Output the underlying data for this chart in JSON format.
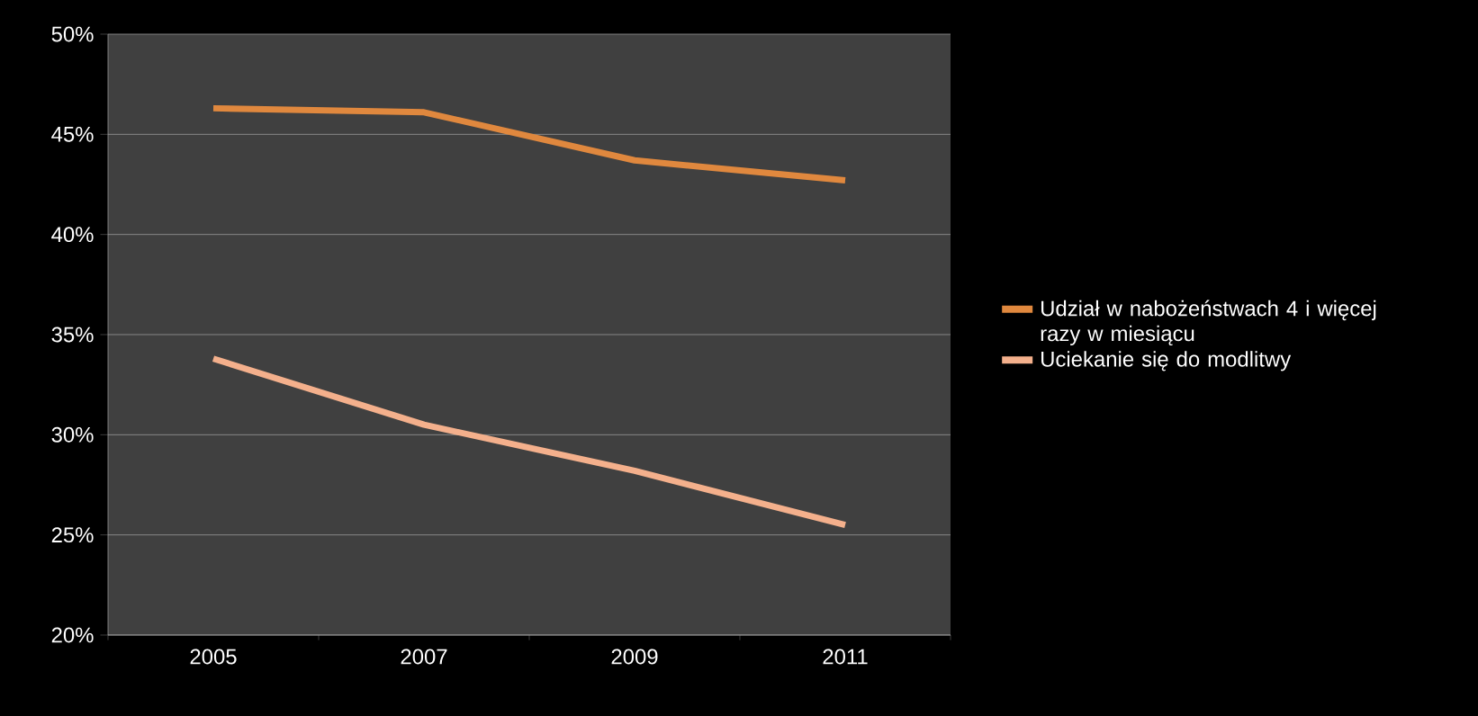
{
  "chart_data": {
    "type": "line",
    "categories": [
      "2005",
      "2007",
      "2009",
      "2011"
    ],
    "series": [
      {
        "name": "Udział w nabożeństwach 4 i więcej razy w miesiącu",
        "color": "#e0883e",
        "values": [
          46.3,
          46.1,
          43.7,
          42.7
        ]
      },
      {
        "name": "Uciekanie się do modlitwy",
        "color": "#f4b08c",
        "values": [
          33.8,
          30.5,
          28.2,
          25.5
        ]
      }
    ],
    "ylim": [
      20,
      50
    ],
    "yticks": [
      {
        "value": 20,
        "label": "20%"
      },
      {
        "value": 25,
        "label": "25%"
      },
      {
        "value": 30,
        "label": "30%"
      },
      {
        "value": 35,
        "label": "35%"
      },
      {
        "value": 40,
        "label": "40%"
      },
      {
        "value": 45,
        "label": "45%"
      },
      {
        "value": 50,
        "label": "50%"
      }
    ],
    "grid": "y",
    "legend": "right",
    "marker": "none",
    "line_style": "solid"
  }
}
